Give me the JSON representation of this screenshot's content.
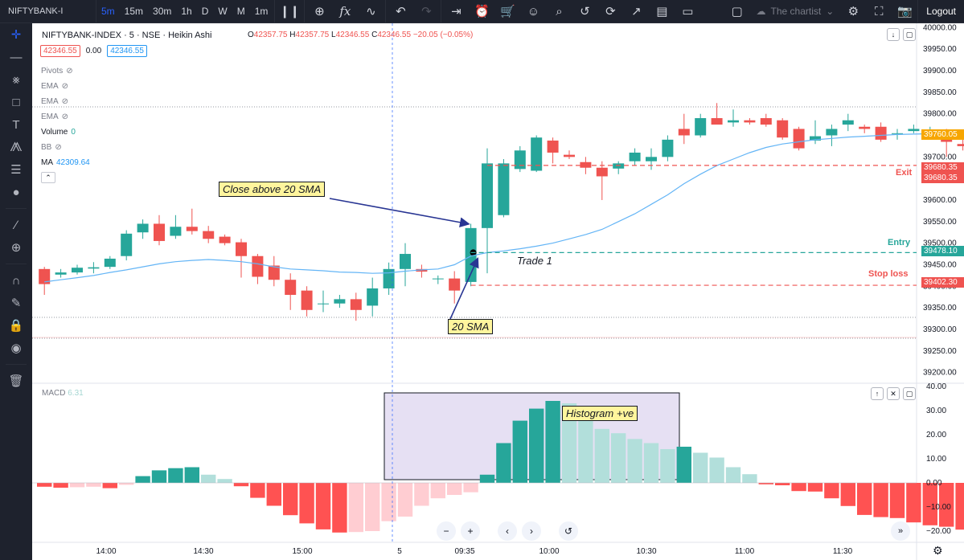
{
  "toolbar": {
    "symbol": "NIFTYBANK-I",
    "intervals": [
      "5m",
      "15m",
      "30m",
      "1h",
      "D",
      "W",
      "M",
      "1m"
    ],
    "active_interval": "5m",
    "layout_name": "The chartist",
    "logout_label": "Logout"
  },
  "legend": {
    "title": "NIFTYBANK-INDEX · 5 · NSE · Heikin Ashi",
    "o_label": "O",
    "o": "42357.75",
    "h_label": "H",
    "h": "42357.75",
    "l_label": "L",
    "l": "42346.55",
    "c_label": "C",
    "c": "42346.55",
    "change": "−20.05 (−0.05%)",
    "bid": "42346.55",
    "spread": "0.00",
    "ask": "42346.55"
  },
  "indicators": [
    {
      "name": "Pivots",
      "value": ""
    },
    {
      "name": "EMA",
      "value": ""
    },
    {
      "name": "EMA",
      "value": ""
    },
    {
      "name": "EMA",
      "value": ""
    },
    {
      "name": "Volume",
      "value": "0"
    },
    {
      "name": "BB",
      "value": ""
    },
    {
      "name": "MA",
      "value": "42309.64"
    }
  ],
  "macd_legend": {
    "name": "MACD",
    "value": "6.31"
  },
  "annotations": {
    "close_above": "Close above 20 SMA",
    "sma20": "20 SMA",
    "histogram": "Histogram +ve",
    "trade": "Trade 1",
    "entry": "Entry",
    "exit": "Exit",
    "stop_loss": "Stop loss"
  },
  "price_tags": {
    "current": "39760.05",
    "exit_a": "39680.35",
    "exit_b": "39680.35",
    "entry": "39478.10",
    "stop": "39402.30"
  },
  "colors": {
    "up": "#26a69a",
    "down": "#ef5350",
    "sma": "#64b5f6",
    "macd_up_strong": "#26a69a",
    "macd_up_weak": "#b2dfdb",
    "macd_down_strong": "#ff5252",
    "macd_down_weak": "#ffcdd2",
    "highlight": "#e6e0f3"
  },
  "axes": {
    "price_ticks": [
      "40000.00",
      "39950.00",
      "39900.00",
      "39850.00",
      "39800.00",
      "39750.00",
      "39700.00",
      "39650.00",
      "39600.00",
      "39550.00",
      "39500.00",
      "39450.00",
      "39400.00",
      "39350.00",
      "39300.00",
      "39250.00",
      "39200.00"
    ],
    "macd_ticks": [
      "40.00",
      "30.00",
      "20.00",
      "10.00",
      "0.00",
      "−10.00",
      "−20.00"
    ],
    "time_ticks": [
      "14:00",
      "14:30",
      "15:00",
      "5",
      "09:35",
      "10:00",
      "10:30",
      "11:00",
      "11:30"
    ]
  },
  "chart_data": {
    "type": "candlestick",
    "price": {
      "ylim": [
        39175,
        40010
      ],
      "candles": [
        [
          39440,
          39445,
          39380,
          39405
        ],
        [
          39427,
          39440,
          39420,
          39432
        ],
        [
          39432,
          39450,
          39427,
          39443
        ],
        [
          39441,
          39456,
          39430,
          39444
        ],
        [
          39445,
          39470,
          39440,
          39464
        ],
        [
          39470,
          39530,
          39460,
          39522
        ],
        [
          39525,
          39555,
          39510,
          39545
        ],
        [
          39545,
          39565,
          39495,
          39505
        ],
        [
          39517,
          39565,
          39510,
          39538
        ],
        [
          39538,
          39580,
          39520,
          39528
        ],
        [
          39528,
          39540,
          39500,
          39510
        ],
        [
          39515,
          39520,
          39495,
          39500
        ],
        [
          39502,
          39510,
          39420,
          39470
        ],
        [
          39470,
          39475,
          39405,
          39422
        ],
        [
          39448,
          39470,
          39400,
          39415
        ],
        [
          39415,
          39430,
          39345,
          39380
        ],
        [
          39390,
          39400,
          39330,
          39345
        ],
        [
          39360,
          39390,
          39340,
          39360
        ],
        [
          39360,
          39380,
          39350,
          39370
        ],
        [
          39370,
          39385,
          39320,
          39345
        ],
        [
          39355,
          39420,
          39330,
          39395
        ],
        [
          39395,
          39455,
          39380,
          39440
        ],
        [
          39440,
          39500,
          39400,
          39475
        ],
        [
          39440,
          39450,
          39420,
          39434
        ],
        [
          39418,
          39425,
          39405,
          39418
        ],
        [
          39418,
          39435,
          39360,
          39390
        ],
        [
          39410,
          39545,
          39400,
          39535
        ],
        [
          39535,
          39720,
          39430,
          39685
        ],
        [
          39565,
          39695,
          39560,
          39685
        ],
        [
          39672,
          39725,
          39665,
          39715
        ],
        [
          39668,
          39750,
          39665,
          39745
        ],
        [
          39738,
          39745,
          39685,
          39710
        ],
        [
          39705,
          39715,
          39695,
          39700
        ],
        [
          39688,
          39700,
          39660,
          39675
        ],
        [
          39675,
          39690,
          39600,
          39655
        ],
        [
          39673,
          39690,
          39660,
          39685
        ],
        [
          39690,
          39720,
          39680,
          39710
        ],
        [
          39690,
          39720,
          39670,
          39700
        ],
        [
          39700,
          39750,
          39690,
          39740
        ],
        [
          39765,
          39800,
          39730,
          39750
        ],
        [
          39750,
          39800,
          39745,
          39790
        ],
        [
          39790,
          39825,
          39780,
          39775
        ],
        [
          39780,
          39810,
          39770,
          39785
        ],
        [
          39785,
          39790,
          39775,
          39780
        ],
        [
          39790,
          39800,
          39770,
          39775
        ],
        [
          39785,
          39790,
          39740,
          39745
        ],
        [
          39765,
          39770,
          39715,
          39720
        ],
        [
          39738,
          39785,
          39730,
          39748
        ],
        [
          39750,
          39775,
          39725,
          39765
        ],
        [
          39775,
          39800,
          39760,
          39785
        ],
        [
          39770,
          39775,
          39755,
          39765
        ],
        [
          39770,
          39780,
          39735,
          39740
        ],
        [
          39755,
          39765,
          39740,
          39755
        ],
        [
          39760,
          39775,
          39755,
          39765
        ],
        [
          39760,
          39770,
          39750,
          39760
        ],
        [
          39760,
          39765,
          39700,
          39735
        ],
        [
          39730,
          39740,
          39715,
          39725
        ],
        [
          39735,
          39745,
          39700,
          39715
        ],
        [
          39735,
          39740,
          39725,
          39730
        ],
        [
          39730,
          39745,
          39700,
          39720
        ],
        [
          39725,
          39740,
          39690,
          39720
        ],
        [
          39720,
          39735,
          39700,
          39725
        ],
        [
          39735,
          39755,
          39700,
          39735
        ],
        [
          39735,
          39765,
          39725,
          39755
        ],
        [
          39745,
          39775,
          39730,
          39760
        ]
      ],
      "sma20": [
        39410,
        39415,
        39420,
        39425,
        39432,
        39438,
        39445,
        39452,
        39457,
        39460,
        39462,
        39460,
        39457,
        39452,
        39445,
        39440,
        39438,
        39436,
        39433,
        39432,
        39430,
        39431,
        39435,
        39438,
        39440,
        39450,
        39470,
        39478,
        39482,
        39487,
        39493,
        39500,
        39510,
        39520,
        39532,
        39550,
        39568,
        39590,
        39612,
        39638,
        39660,
        39680,
        39695,
        39710,
        39722,
        39730,
        39735,
        39740,
        39743,
        39746,
        39748,
        39750,
        39752,
        39753,
        39754,
        39754,
        39755,
        39755,
        39755,
        39755,
        39756,
        39757,
        39758,
        39759,
        39760
      ],
      "levels": {
        "exit": 39680.35,
        "entry": 39478.1,
        "stop_loss": 39402.3,
        "current": 39760.05
      }
    },
    "macd": {
      "ylim": [
        -24,
        40
      ],
      "histogram": [
        -1.6,
        -2.0,
        -1.8,
        -1.6,
        -2.2,
        -0.8,
        2.8,
        5.2,
        6.1,
        6.5,
        3.4,
        1.6,
        -1.4,
        -6.2,
        -9.5,
        -13.4,
        -16.8,
        -19.3,
        -20.6,
        -20.4,
        -20.0,
        -15.9,
        -14.0,
        -9.5,
        -6.4,
        -5.0,
        -3.9,
        3.4,
        16.5,
        25.8,
        30.8,
        34.0,
        33.0,
        28.0,
        22.4,
        20.6,
        18.2,
        16.5,
        14.0,
        15.0,
        12.5,
        10.5,
        6.5,
        3.6,
        -0.6,
        -1.0,
        -3.4,
        -3.6,
        -6.4,
        -9.6,
        -13.3,
        -14.2,
        -14.6,
        -16.4,
        -17.6,
        -18.2,
        -19.4,
        -20.1,
        -19.2,
        -18.0,
        -17.3,
        -15.2,
        -13.6,
        -13.2,
        -9.4
      ]
    }
  }
}
